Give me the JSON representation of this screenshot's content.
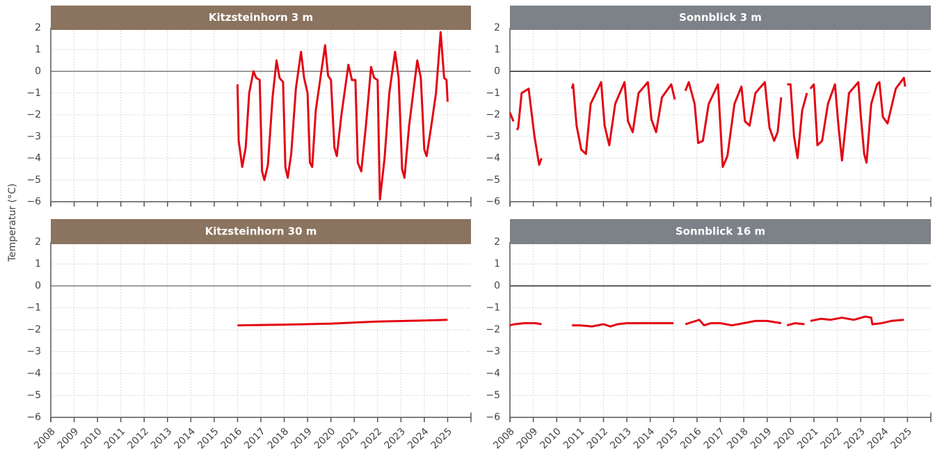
{
  "ylabel": "Temperatur (°C)",
  "chart_data": [
    {
      "type": "line",
      "title": "Kitzsteinhorn 3 m",
      "color": "#e30613",
      "zero_line_color": "#666",
      "header_color": "#8a735f",
      "show_xtick_labels": false,
      "xlim": [
        2008,
        2026
      ],
      "ylim": [
        -6,
        2
      ],
      "xticks": [
        2008,
        2009,
        2010,
        2011,
        2012,
        2013,
        2014,
        2015,
        2016,
        2017,
        2018,
        2019,
        2020,
        2021,
        2022,
        2023,
        2024,
        2025
      ],
      "yticks": [
        {
          "value": -6,
          "label": "−6"
        },
        {
          "value": -5,
          "label": "−5"
        },
        {
          "value": -4,
          "label": "−4"
        },
        {
          "value": -3,
          "label": "−3"
        },
        {
          "value": -2,
          "label": "−2"
        },
        {
          "value": -1,
          "label": "−1"
        },
        0,
        1,
        2
      ],
      "x": [
        2016.0,
        2016.05,
        2016.2,
        2016.35,
        2016.5,
        2016.68,
        2016.8,
        2016.95,
        2017.05,
        2017.15,
        2017.3,
        2017.5,
        2017.67,
        2017.8,
        2017.95,
        2018.05,
        2018.15,
        2018.3,
        2018.5,
        2018.72,
        2018.85,
        2019.0,
        2019.1,
        2019.2,
        2019.35,
        2019.75,
        2019.88,
        2020.0,
        2020.15,
        2020.25,
        2020.45,
        2020.75,
        2020.9,
        2021.05,
        2021.15,
        2021.3,
        2021.5,
        2021.72,
        2021.85,
        2022.0,
        2022.1,
        2022.3,
        2022.5,
        2022.75,
        2022.9,
        2023.05,
        2023.15,
        2023.35,
        2023.7,
        2023.85,
        2024.0,
        2024.1,
        2024.3,
        2024.5,
        2024.7,
        2024.85,
        2024.95,
        2025.0
      ],
      "values": [
        -0.6,
        -3.2,
        -4.4,
        -3.5,
        -1.0,
        0.0,
        -0.3,
        -0.4,
        -4.6,
        -5.0,
        -4.3,
        -1.2,
        0.5,
        -0.3,
        -0.5,
        -4.4,
        -4.9,
        -3.8,
        -0.8,
        0.9,
        -0.3,
        -1.0,
        -4.2,
        -4.4,
        -1.8,
        1.2,
        -0.2,
        -0.4,
        -3.5,
        -3.9,
        -2.0,
        0.3,
        -0.4,
        -0.4,
        -4.2,
        -4.6,
        -2.5,
        0.2,
        -0.3,
        -0.4,
        -5.9,
        -4.0,
        -1.0,
        0.9,
        -0.3,
        -4.5,
        -4.9,
        -2.5,
        0.5,
        -0.3,
        -3.6,
        -3.9,
        -2.5,
        -1.0,
        1.8,
        -0.3,
        -0.4,
        -1.4
      ]
    },
    {
      "type": "line",
      "title": "Sonnblick 3 m",
      "color": "#e30613",
      "zero_line_color": "#000",
      "header_color": "#7d8288",
      "show_xtick_labels": false,
      "xlim": [
        2008,
        2026
      ],
      "ylim": [
        -6,
        2
      ],
      "xticks": [
        2008,
        2009,
        2010,
        2011,
        2012,
        2013,
        2014,
        2015,
        2016,
        2017,
        2018,
        2019,
        2020,
        2021,
        2022,
        2023,
        2024,
        2025
      ],
      "yticks": [
        {
          "value": -6,
          "label": "−6"
        },
        {
          "value": -5,
          "label": "−5"
        },
        {
          "value": -4,
          "label": "−4"
        },
        {
          "value": -3,
          "label": "−3"
        },
        {
          "value": -2,
          "label": "−2"
        },
        {
          "value": -1,
          "label": "−1"
        },
        0,
        1,
        2
      ],
      "x": [
        2008.0,
        2008.15,
        2008.25,
        2008.3,
        2008.35,
        2008.5,
        2008.8,
        2009.05,
        2009.25,
        2009.35,
        2010.0,
        2010.65,
        2010.7,
        2010.85,
        2011.05,
        2011.25,
        2011.45,
        2011.9,
        2012.05,
        2012.25,
        2012.5,
        2012.9,
        2013.05,
        2013.25,
        2013.5,
        2013.9,
        2014.05,
        2014.25,
        2014.5,
        2014.9,
        2015.05,
        2015.3,
        2015.5,
        2015.65,
        2015.9,
        2016.05,
        2016.25,
        2016.5,
        2016.9,
        2017.1,
        2017.3,
        2017.6,
        2017.9,
        2018.05,
        2018.25,
        2018.5,
        2018.9,
        2019.1,
        2019.3,
        2019.45,
        2019.6,
        2019.7,
        2019.85,
        2020.0,
        2020.15,
        2020.3,
        2020.5,
        2020.7,
        2020.78,
        2020.85,
        2021.0,
        2021.15,
        2021.35,
        2021.6,
        2021.9,
        2022.05,
        2022.2,
        2022.5,
        2022.9,
        2023.0,
        2023.15,
        2023.25,
        2023.45,
        2023.7,
        2023.8,
        2023.95,
        2024.15,
        2024.5,
        2024.85,
        2024.9
      ],
      "values": [
        -1.9,
        -2.3,
        null,
        -2.7,
        -2.6,
        -1.0,
        -0.8,
        -3.0,
        -4.3,
        -4.0,
        null,
        -0.8,
        -0.6,
        -2.5,
        -3.6,
        -3.8,
        -1.5,
        -0.5,
        -2.5,
        -3.4,
        -1.5,
        -0.5,
        -2.3,
        -2.8,
        -1.0,
        -0.5,
        -2.2,
        -2.8,
        -1.2,
        -0.6,
        -1.3,
        null,
        -0.9,
        -0.5,
        -1.5,
        -3.3,
        -3.2,
        -1.5,
        -0.6,
        -4.4,
        -3.9,
        -1.5,
        -0.7,
        -2.3,
        -2.5,
        -1.0,
        -0.5,
        -2.6,
        -3.2,
        -2.8,
        -1.2,
        null,
        -0.6,
        -0.6,
        -3.0,
        -4.0,
        -1.8,
        -1.0,
        null,
        -0.8,
        -0.6,
        -3.4,
        -3.2,
        -1.5,
        -0.6,
        -2.5,
        -4.1,
        -1.0,
        -0.5,
        -2.0,
        -3.8,
        -4.2,
        -1.5,
        -0.6,
        -0.5,
        -2.1,
        -2.4,
        -0.8,
        -0.3,
        -0.7
      ]
    },
    {
      "type": "line",
      "title": "Kitzsteinhorn 30 m",
      "color": "#e30613",
      "zero_line_color": "#666",
      "header_color": "#8a735f",
      "show_xtick_labels": true,
      "xlim": [
        2008,
        2026
      ],
      "ylim": [
        -6,
        2
      ],
      "xticks": [
        2008,
        2009,
        2010,
        2011,
        2012,
        2013,
        2014,
        2015,
        2016,
        2017,
        2018,
        2019,
        2020,
        2021,
        2022,
        2023,
        2024,
        2025
      ],
      "yticks": [
        {
          "value": -6,
          "label": "−6"
        },
        {
          "value": -5,
          "label": "−5"
        },
        {
          "value": -4,
          "label": "−4"
        },
        {
          "value": -3,
          "label": "−3"
        },
        {
          "value": -2,
          "label": "−2"
        },
        {
          "value": -1,
          "label": "−1"
        },
        0,
        1,
        2
      ],
      "x": [
        2016.0,
        2018.0,
        2020.0,
        2022.0,
        2024.0,
        2025.0
      ],
      "values": [
        -1.8,
        -1.77,
        -1.72,
        -1.63,
        -1.58,
        -1.55
      ]
    },
    {
      "type": "line",
      "title": "Sonnblick 16 m",
      "color": "#e30613",
      "zero_line_color": "#000",
      "header_color": "#7d8288",
      "show_xtick_labels": true,
      "xlim": [
        2008,
        2026
      ],
      "ylim": [
        -6,
        2
      ],
      "xticks": [
        2008,
        2009,
        2010,
        2011,
        2012,
        2013,
        2014,
        2015,
        2016,
        2017,
        2018,
        2019,
        2020,
        2021,
        2022,
        2023,
        2024,
        2025
      ],
      "yticks": [
        {
          "value": -6,
          "label": "−6"
        },
        {
          "value": -5,
          "label": "−5"
        },
        {
          "value": -4,
          "label": "−4"
        },
        {
          "value": -3,
          "label": "−3"
        },
        {
          "value": -2,
          "label": "−2"
        },
        {
          "value": -1,
          "label": "−1"
        },
        0,
        1,
        2
      ],
      "x": [
        2008.0,
        2008.2,
        2008.6,
        2009.1,
        2009.35,
        2010.0,
        2010.65,
        2011.0,
        2011.5,
        2012.0,
        2012.3,
        2012.6,
        2013.0,
        2013.5,
        2014.0,
        2014.5,
        2015.0,
        2015.3,
        2015.5,
        2015.8,
        2016.1,
        2016.3,
        2016.6,
        2017.0,
        2017.5,
        2018.0,
        2018.5,
        2019.0,
        2019.3,
        2019.6,
        2019.7,
        2019.85,
        2020.2,
        2020.6,
        2020.75,
        2020.85,
        2021.3,
        2021.7,
        2022.2,
        2022.7,
        2023.2,
        2023.45,
        2023.5,
        2023.9,
        2024.3,
        2024.85
      ],
      "values": [
        -1.8,
        -1.75,
        -1.7,
        -1.7,
        -1.75,
        null,
        -1.8,
        -1.8,
        -1.85,
        -1.75,
        -1.85,
        -1.75,
        -1.7,
        -1.7,
        -1.7,
        -1.7,
        -1.7,
        null,
        -1.75,
        -1.65,
        -1.55,
        -1.8,
        -1.7,
        -1.7,
        -1.8,
        -1.7,
        -1.6,
        -1.6,
        -1.65,
        -1.7,
        null,
        -1.8,
        -1.7,
        -1.75,
        null,
        -1.6,
        -1.5,
        -1.55,
        -1.45,
        -1.55,
        -1.4,
        -1.45,
        -1.75,
        -1.7,
        -1.6,
        -1.55
      ]
    }
  ]
}
